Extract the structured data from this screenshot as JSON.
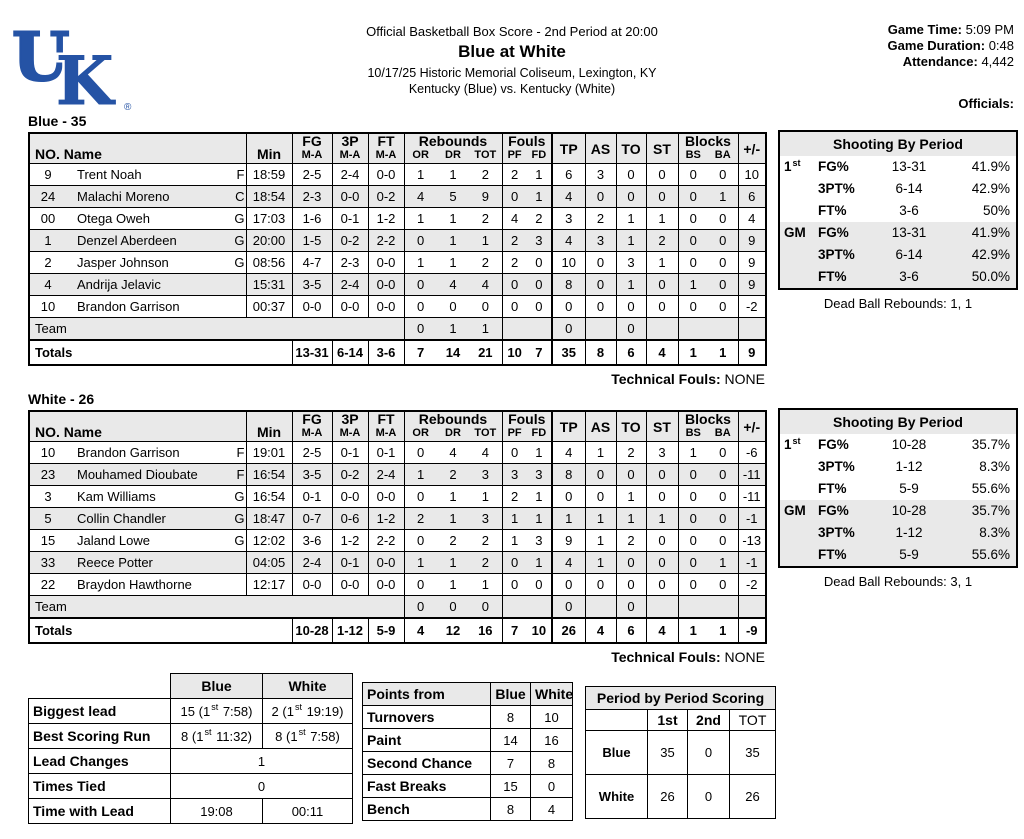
{
  "colors": {
    "uk_blue": "#2553a5",
    "row_stripe": "#e9e9e9"
  },
  "logo": {
    "u": "U",
    "k": "K",
    "reg": "®"
  },
  "header": {
    "line1": "Official Basketball Box Score - 2nd Period at 20:00",
    "line2": "Blue at White",
    "line3": "10/17/25 Historic Memorial Coliseum, Lexington, KY",
    "line4": "Kentucky (Blue) vs. Kentucky (White)",
    "game_time_label": "Game Time:",
    "game_time": "5:09 PM",
    "game_duration_label": "Game Duration:",
    "game_duration": "0:48",
    "attendance_label": "Attendance:",
    "attendance": "4,442",
    "officials_label": "Officials:"
  },
  "columns": {
    "no_name": "NO. Name",
    "min": "Min",
    "fg": "FG",
    "p3": "3P",
    "ft": "FT",
    "ma": "M-A",
    "rebounds": "Rebounds",
    "or": "OR",
    "dr": "DR",
    "tot": "TOT",
    "fouls": "Fouls",
    "pf": "PF",
    "fd": "FD",
    "tp": "TP",
    "as": "AS",
    "to": "TO",
    "st": "ST",
    "blocks": "Blocks",
    "bs": "BS",
    "ba": "BA",
    "pm": "+/-",
    "team_label": "Team",
    "totals_label": "Totals",
    "technical_label": "Technical Fouls:"
  },
  "teams": [
    {
      "title": "Blue - 35",
      "players": [
        {
          "no": "9",
          "name": "Trent Noah",
          "pos": "F",
          "min": "18:59",
          "fg": "2-5",
          "p3": "2-4",
          "ft": "0-0",
          "or": "1",
          "dr": "1",
          "tot": "2",
          "pf": "2",
          "fd": "1",
          "tp": "6",
          "as": "3",
          "to": "0",
          "st": "0",
          "bs": "0",
          "ba": "0",
          "pm": "10"
        },
        {
          "no": "24",
          "name": "Malachi Moreno",
          "pos": "C",
          "min": "18:54",
          "fg": "2-3",
          "p3": "0-0",
          "ft": "0-2",
          "or": "4",
          "dr": "5",
          "tot": "9",
          "pf": "0",
          "fd": "1",
          "tp": "4",
          "as": "0",
          "to": "0",
          "st": "0",
          "bs": "0",
          "ba": "1",
          "pm": "6"
        },
        {
          "no": "00",
          "name": "Otega Oweh",
          "pos": "G",
          "min": "17:03",
          "fg": "1-6",
          "p3": "0-1",
          "ft": "1-2",
          "or": "1",
          "dr": "1",
          "tot": "2",
          "pf": "4",
          "fd": "2",
          "tp": "3",
          "as": "2",
          "to": "1",
          "st": "1",
          "bs": "0",
          "ba": "0",
          "pm": "4"
        },
        {
          "no": "1",
          "name": "Denzel Aberdeen",
          "pos": "G",
          "min": "20:00",
          "fg": "1-5",
          "p3": "0-2",
          "ft": "2-2",
          "or": "0",
          "dr": "1",
          "tot": "1",
          "pf": "2",
          "fd": "3",
          "tp": "4",
          "as": "3",
          "to": "1",
          "st": "2",
          "bs": "0",
          "ba": "0",
          "pm": "9"
        },
        {
          "no": "2",
          "name": "Jasper Johnson",
          "pos": "G",
          "min": "08:56",
          "fg": "4-7",
          "p3": "2-3",
          "ft": "0-0",
          "or": "1",
          "dr": "1",
          "tot": "2",
          "pf": "2",
          "fd": "0",
          "tp": "10",
          "as": "0",
          "to": "3",
          "st": "1",
          "bs": "0",
          "ba": "0",
          "pm": "9"
        },
        {
          "no": "4",
          "name": "Andrija Jelavic",
          "pos": "",
          "min": "15:31",
          "fg": "3-5",
          "p3": "2-4",
          "ft": "0-0",
          "or": "0",
          "dr": "4",
          "tot": "4",
          "pf": "0",
          "fd": "0",
          "tp": "8",
          "as": "0",
          "to": "1",
          "st": "0",
          "bs": "1",
          "ba": "0",
          "pm": "9"
        },
        {
          "no": "10",
          "name": "Brandon Garrison",
          "pos": "",
          "min": "00:37",
          "fg": "0-0",
          "p3": "0-0",
          "ft": "0-0",
          "or": "0",
          "dr": "0",
          "tot": "0",
          "pf": "0",
          "fd": "0",
          "tp": "0",
          "as": "0",
          "to": "0",
          "st": "0",
          "bs": "0",
          "ba": "0",
          "pm": "-2"
        }
      ],
      "team_row": {
        "or": "0",
        "dr": "1",
        "tot": "1",
        "tp": "0",
        "to": "0"
      },
      "totals": {
        "fg": "13-31",
        "p3": "6-14",
        "ft": "3-6",
        "or": "7",
        "dr": "14",
        "tot": "21",
        "pf": "10",
        "fd": "7",
        "tp": "35",
        "as": "8",
        "to": "6",
        "st": "4",
        "bs": "1",
        "ba": "1",
        "pm": "9"
      },
      "technical_value": "NONE",
      "shooting": {
        "title": "Shooting By Period",
        "rows": [
          {
            "p": "1",
            "sup": "st",
            "stat": "FG%",
            "ma": "13-31",
            "pct": "41.9%"
          },
          {
            "p": "",
            "sup": "",
            "stat": "3PT%",
            "ma": "6-14",
            "pct": "42.9%"
          },
          {
            "p": "",
            "sup": "",
            "stat": "FT%",
            "ma": "3-6",
            "pct": "50%"
          },
          {
            "p": "GM",
            "sup": "",
            "stat": "FG%",
            "ma": "13-31",
            "pct": "41.9%"
          },
          {
            "p": "",
            "sup": "",
            "stat": "3PT%",
            "ma": "6-14",
            "pct": "42.9%"
          },
          {
            "p": "",
            "sup": "",
            "stat": "FT%",
            "ma": "3-6",
            "pct": "50.0%"
          }
        ],
        "dead_ball": "Dead Ball Rebounds: 1, 1"
      }
    },
    {
      "title": "White - 26",
      "players": [
        {
          "no": "10",
          "name": "Brandon Garrison",
          "pos": "F",
          "min": "19:01",
          "fg": "2-5",
          "p3": "0-1",
          "ft": "0-1",
          "or": "0",
          "dr": "4",
          "tot": "4",
          "pf": "0",
          "fd": "1",
          "tp": "4",
          "as": "1",
          "to": "2",
          "st": "3",
          "bs": "1",
          "ba": "0",
          "pm": "-6"
        },
        {
          "no": "23",
          "name": "Mouhamed Dioubate",
          "pos": "F",
          "min": "16:54",
          "fg": "3-5",
          "p3": "0-2",
          "ft": "2-4",
          "or": "1",
          "dr": "2",
          "tot": "3",
          "pf": "3",
          "fd": "3",
          "tp": "8",
          "as": "0",
          "to": "0",
          "st": "0",
          "bs": "0",
          "ba": "0",
          "pm": "-11"
        },
        {
          "no": "3",
          "name": "Kam Williams",
          "pos": "G",
          "min": "16:54",
          "fg": "0-1",
          "p3": "0-0",
          "ft": "0-0",
          "or": "0",
          "dr": "1",
          "tot": "1",
          "pf": "2",
          "fd": "1",
          "tp": "0",
          "as": "0",
          "to": "1",
          "st": "0",
          "bs": "0",
          "ba": "0",
          "pm": "-11"
        },
        {
          "no": "5",
          "name": "Collin Chandler",
          "pos": "G",
          "min": "18:47",
          "fg": "0-7",
          "p3": "0-6",
          "ft": "1-2",
          "or": "2",
          "dr": "1",
          "tot": "3",
          "pf": "1",
          "fd": "1",
          "tp": "1",
          "as": "1",
          "to": "1",
          "st": "1",
          "bs": "0",
          "ba": "0",
          "pm": "-1"
        },
        {
          "no": "15",
          "name": "Jaland Lowe",
          "pos": "G",
          "min": "12:02",
          "fg": "3-6",
          "p3": "1-2",
          "ft": "2-2",
          "or": "0",
          "dr": "2",
          "tot": "2",
          "pf": "1",
          "fd": "3",
          "tp": "9",
          "as": "1",
          "to": "2",
          "st": "0",
          "bs": "0",
          "ba": "0",
          "pm": "-13"
        },
        {
          "no": "33",
          "name": "Reece Potter",
          "pos": "",
          "min": "04:05",
          "fg": "2-4",
          "p3": "0-1",
          "ft": "0-0",
          "or": "1",
          "dr": "1",
          "tot": "2",
          "pf": "0",
          "fd": "1",
          "tp": "4",
          "as": "1",
          "to": "0",
          "st": "0",
          "bs": "0",
          "ba": "1",
          "pm": "-1"
        },
        {
          "no": "22",
          "name": "Braydon Hawthorne",
          "pos": "",
          "min": "12:17",
          "fg": "0-0",
          "p3": "0-0",
          "ft": "0-0",
          "or": "0",
          "dr": "1",
          "tot": "1",
          "pf": "0",
          "fd": "0",
          "tp": "0",
          "as": "0",
          "to": "0",
          "st": "0",
          "bs": "0",
          "ba": "0",
          "pm": "-2"
        }
      ],
      "team_row": {
        "or": "0",
        "dr": "0",
        "tot": "0",
        "tp": "0",
        "to": "0"
      },
      "totals": {
        "fg": "10-28",
        "p3": "1-12",
        "ft": "5-9",
        "or": "4",
        "dr": "12",
        "tot": "16",
        "pf": "7",
        "fd": "10",
        "tp": "26",
        "as": "4",
        "to": "6",
        "st": "4",
        "bs": "1",
        "ba": "1",
        "pm": "-9"
      },
      "technical_value": "NONE",
      "shooting": {
        "title": "Shooting By Period",
        "rows": [
          {
            "p": "1",
            "sup": "st",
            "stat": "FG%",
            "ma": "10-28",
            "pct": "35.7%"
          },
          {
            "p": "",
            "sup": "",
            "stat": "3PT%",
            "ma": "1-12",
            "pct": "8.3%"
          },
          {
            "p": "",
            "sup": "",
            "stat": "FT%",
            "ma": "5-9",
            "pct": "55.6%"
          },
          {
            "p": "GM",
            "sup": "",
            "stat": "FG%",
            "ma": "10-28",
            "pct": "35.7%"
          },
          {
            "p": "",
            "sup": "",
            "stat": "3PT%",
            "ma": "1-12",
            "pct": "8.3%"
          },
          {
            "p": "",
            "sup": "",
            "stat": "FT%",
            "ma": "5-9",
            "pct": "55.6%"
          }
        ],
        "dead_ball": "Dead Ball Rebounds: 3, 1"
      }
    }
  ],
  "lead_stats": {
    "col_blue": "Blue",
    "col_white": "White",
    "biggest": {
      "label": "Biggest lead",
      "blue": {
        "pre": "15 (1",
        "sup": "st",
        "post": " 7:58)"
      },
      "white": {
        "pre": "2 (1",
        "sup": "st",
        "post": " 19:19)"
      }
    },
    "run": {
      "label": "Best Scoring Run",
      "blue": {
        "pre": "8 (1",
        "sup": "st",
        "post": " 11:32)"
      },
      "white": {
        "pre": "8 (1",
        "sup": "st",
        "post": " 7:58)"
      }
    },
    "changes": {
      "label": "Lead Changes",
      "value": "1"
    },
    "tied": {
      "label": "Times Tied",
      "value": "0"
    },
    "time": {
      "label": "Time with Lead",
      "blue": "19:08",
      "white": "00:11"
    }
  },
  "points_from": {
    "title": "Points from",
    "col_blue": "Blue",
    "col_white": "White",
    "rows": [
      {
        "label": "Turnovers",
        "blue": "8",
        "white": "10"
      },
      {
        "label": "Paint",
        "blue": "14",
        "white": "16"
      },
      {
        "label": "Second Chance",
        "blue": "7",
        "white": "8"
      },
      {
        "label": "Fast Breaks",
        "blue": "15",
        "white": "0"
      },
      {
        "label": "Bench",
        "blue": "8",
        "white": "4"
      }
    ]
  },
  "period_scoring": {
    "title": "Period by Period Scoring",
    "cols": [
      "1st",
      "2nd",
      "TOT"
    ],
    "rows": [
      {
        "label": "Blue",
        "p1": "35",
        "p2": "0",
        "tot": "35"
      },
      {
        "label": "White",
        "p1": "26",
        "p2": "0",
        "tot": "26"
      }
    ]
  }
}
